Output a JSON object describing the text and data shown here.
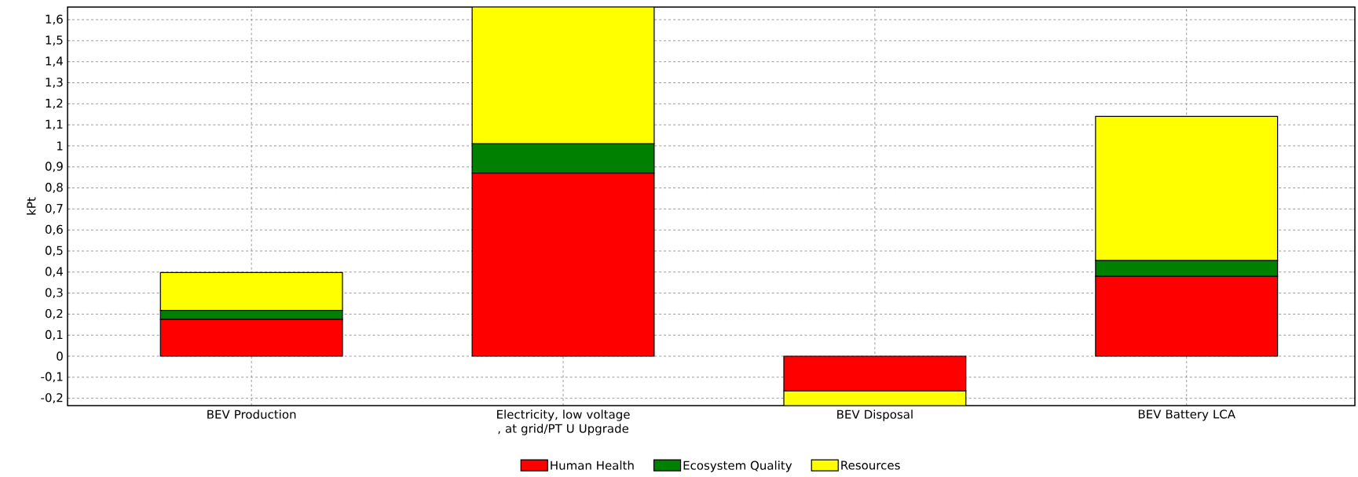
{
  "chart_data": {
    "type": "bar",
    "stacked": true,
    "ylabel": "kPt",
    "categories": [
      "BEV Production",
      "Electricity, low voltage , at grid/PT U Upgrade",
      "BEV Disposal",
      "BEV Battery LCA"
    ],
    "series": [
      {
        "name": "Human Health",
        "color": "#ff0000",
        "values": [
          0.175,
          0.87,
          -0.165,
          0.38
        ]
      },
      {
        "name": "Ecosystem Quality",
        "color": "#008000",
        "values": [
          0.043,
          0.14,
          0,
          0.075
        ]
      },
      {
        "name": "Resources",
        "color": "#ffff00",
        "values": [
          0.18,
          0.65,
          -0.07,
          0.685
        ]
      }
    ],
    "ylim": [
      -0.235,
      1.66
    ],
    "yticks": [
      {
        "value": -0.2,
        "label": "-0,2"
      },
      {
        "value": -0.1,
        "label": "-0,1"
      },
      0,
      {
        "value": 0.1,
        "label": "0,1"
      },
      {
        "value": 0.2,
        "label": "0,2"
      },
      {
        "value": 0.3,
        "label": "0,3"
      },
      {
        "value": 0.4,
        "label": "0,4"
      },
      {
        "value": 0.5,
        "label": "0,5"
      },
      {
        "value": 0.6,
        "label": "0,6"
      },
      {
        "value": 0.7,
        "label": "0,7"
      },
      {
        "value": 0.8,
        "label": "0,8"
      },
      {
        "value": 0.9,
        "label": "0,9"
      },
      1,
      {
        "value": 1.1,
        "label": "1,1"
      },
      {
        "value": 1.2,
        "label": "1,2"
      },
      {
        "value": 1.3,
        "label": "1,3"
      },
      {
        "value": 1.4,
        "label": "1,4"
      },
      {
        "value": 1.5,
        "label": "1,5"
      },
      {
        "value": 1.6,
        "label": "1,6"
      }
    ],
    "grid": true,
    "legend": "bottom"
  }
}
